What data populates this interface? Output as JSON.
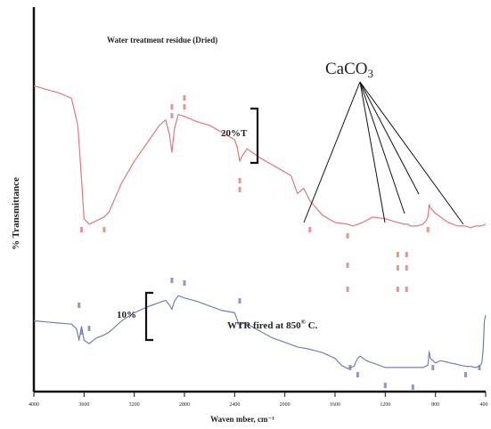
{
  "chart_data": {
    "type": "line",
    "title": "",
    "xlabel": "Waven  mber, cm⁻¹",
    "ylabel": "% Transmittance",
    "xlim": [
      4000,
      400
    ],
    "x_ticks": [
      4000,
      3600,
      3200,
      2800,
      2400,
      2000,
      1600,
      1200,
      800,
      400
    ],
    "x_tick_labels": [
      "4000",
      "3600",
      "3200",
      "2800",
      "2400",
      "2000",
      "1600",
      "1200",
      "800",
      "400"
    ],
    "grid": false,
    "series": [
      {
        "name": "Water treatment residue (Dried)",
        "color": "#e07a7a",
        "x": [
          4000,
          3900,
          3800,
          3700,
          3650,
          3620,
          3600,
          3560,
          3500,
          3440,
          3400,
          3300,
          3200,
          3100,
          3000,
          2950,
          2920,
          2900,
          2880,
          2850,
          2800,
          2700,
          2600,
          2500,
          2400,
          2380,
          2360,
          2340,
          2300,
          2200,
          2100,
          2000,
          1950,
          1900,
          1850,
          1800,
          1700,
          1600,
          1500,
          1460,
          1420,
          1380,
          1300,
          1200,
          1100,
          1050,
          1020,
          1000,
          950,
          900,
          875,
          860,
          850,
          840,
          800,
          760,
          720,
          700,
          660,
          620,
          600,
          560,
          520,
          480,
          440,
          400
        ],
        "y": [
          82,
          80,
          78,
          75,
          60,
          30,
          8,
          5,
          7,
          9,
          12,
          28,
          40,
          50,
          60,
          63,
          55,
          45,
          58,
          66,
          65,
          62,
          60,
          56,
          52,
          48,
          40,
          43,
          47,
          42,
          38,
          34,
          32,
          22,
          25,
          18,
          10,
          6,
          5,
          4,
          5,
          6,
          9,
          8,
          6,
          5,
          5,
          4,
          4,
          5,
          7,
          9,
          16,
          14,
          11,
          9,
          7,
          6,
          5,
          4,
          4,
          4,
          3,
          4,
          4,
          5
        ]
      },
      {
        "name": "WTR fired at 850° C.",
        "color": "#7280b4",
        "x": [
          4000,
          3900,
          3800,
          3700,
          3660,
          3640,
          3620,
          3600,
          3560,
          3500,
          3450,
          3400,
          3300,
          3200,
          3100,
          3000,
          2950,
          2920,
          2900,
          2880,
          2850,
          2800,
          2700,
          2600,
          2500,
          2400,
          2380,
          2360,
          2340,
          2300,
          2200,
          2100,
          2000,
          1900,
          1800,
          1700,
          1600,
          1550,
          1500,
          1450,
          1420,
          1400,
          1350,
          1300,
          1200,
          1100,
          1000,
          950,
          900,
          860,
          850,
          840,
          800,
          760,
          720,
          680,
          640,
          600,
          560,
          520,
          480,
          450,
          430,
          420,
          410,
          400
        ],
        "y": [
          45,
          44,
          43,
          42,
          38,
          28,
          40,
          28,
          25,
          30,
          32,
          35,
          45,
          52,
          57,
          61,
          63,
          59,
          55,
          62,
          67,
          65,
          62,
          58,
          54,
          52,
          46,
          40,
          43,
          42,
          36,
          30,
          26,
          22,
          20,
          17,
          12,
          6,
          3,
          5,
          12,
          14,
          10,
          8,
          4,
          4,
          4,
          4,
          4,
          6,
          18,
          12,
          8,
          10,
          9,
          8,
          7,
          6,
          5,
          5,
          4,
          5,
          8,
          20,
          45,
          50
        ]
      }
    ],
    "annotations": [
      {
        "text": "Water treatment residue (Dried)"
      },
      {
        "text": "CaCO3"
      },
      {
        "text": "20%T"
      },
      {
        "text": "10%"
      },
      {
        "text": "WTR fired at 850° C."
      }
    ]
  }
}
